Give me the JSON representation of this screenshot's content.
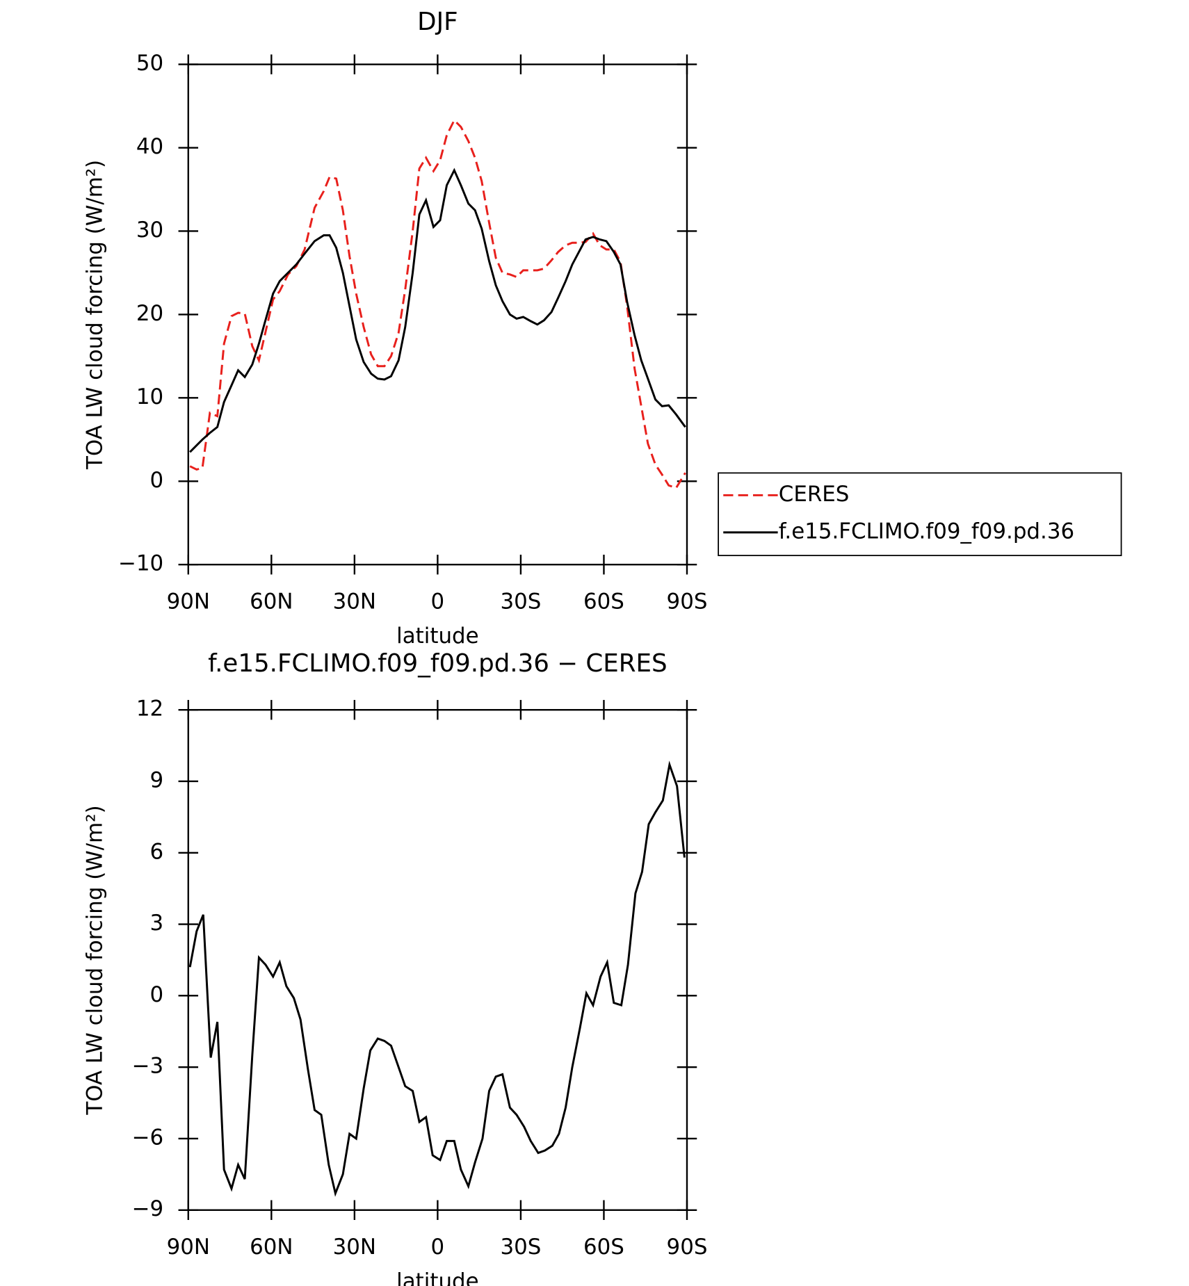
{
  "chart_data": [
    {
      "type": "line",
      "title": "DJF",
      "xlabel": "latitude",
      "ylabel": "TOA LW cloud forcing (W/m²)",
      "x": [
        89.4,
        87,
        84.9,
        82.2,
        79.5,
        77.1,
        74.4,
        72,
        69.6,
        66.9,
        64.5,
        62.4,
        59.4,
        57,
        54,
        51,
        48,
        44.4,
        41.1,
        39,
        36.6,
        34.2,
        31.8,
        29.4,
        26.7,
        24,
        21.6,
        19.2,
        16.8,
        14.1,
        11.7,
        9,
        6.6,
        4.2,
        1.5,
        -0.9,
        -3.3,
        -6,
        -8.4,
        -11.1,
        -13.5,
        -15.9,
        -18.6,
        -21,
        -23.4,
        -26.1,
        -28.5,
        -30.9,
        -33.6,
        -36,
        -38.4,
        -41.1,
        -43.5,
        -46.2,
        -48.6,
        -51,
        -53.4,
        -56.1,
        -58.5,
        -60.9,
        -63.6,
        -66,
        -68.4,
        -71.1,
        -73.5,
        -75.9,
        -78.6,
        -81,
        -83.4,
        -86.1,
        -89.4
      ],
      "series": [
        {
          "name": "CERES",
          "color": "#e8201c",
          "dash": true,
          "values": [
            1.8,
            1.4,
            1.6,
            8.2,
            7.8,
            16.5,
            19.8,
            20.2,
            20.1,
            16.2,
            14.5,
            17.5,
            21.8,
            22.8,
            24.8,
            25.8,
            27.8,
            32.8,
            34.8,
            36.5,
            36.3,
            32.5,
            27,
            22.5,
            18.5,
            15.2,
            13.8,
            13.8,
            15,
            17.8,
            23,
            30,
            37.5,
            38.8,
            37.2,
            38.5,
            41.5,
            43.3,
            42.5,
            40.8,
            38.8,
            36,
            31,
            26.8,
            25,
            24.8,
            24.5,
            25.3,
            25.3,
            25.3,
            25.5,
            26.5,
            27.5,
            28.3,
            28.6,
            28.6,
            28.7,
            29.7,
            28.3,
            27.8,
            27.8,
            26.3,
            21,
            13.5,
            9,
            4.5,
            2,
            0.8,
            -0.5,
            -0.8,
            1
          ]
        },
        {
          "name": "f.e15.FCLIMO.f09_f09.pd.36",
          "color": "#000000",
          "dash": false,
          "values": [
            3.5,
            4.3,
            5,
            5.8,
            6.5,
            9.5,
            11.5,
            13.3,
            12.5,
            14,
            16.5,
            19,
            22.5,
            24,
            25,
            26,
            27.3,
            28.8,
            29.5,
            29.5,
            28,
            25,
            21,
            17,
            14.3,
            12.9,
            12.3,
            12.2,
            12.6,
            14.5,
            18.5,
            25,
            32,
            33.7,
            30.5,
            31.3,
            35.5,
            37.3,
            35.5,
            33.3,
            32.5,
            30.3,
            26.4,
            23.5,
            21.6,
            20,
            19.5,
            19.7,
            19.2,
            18.8,
            19.3,
            20.3,
            22,
            24,
            26,
            27.5,
            29,
            29.3,
            29,
            28.8,
            27.5,
            26,
            21.5,
            17.5,
            14.5,
            12.3,
            9.8,
            9,
            9.1,
            8,
            6.5
          ]
        }
      ],
      "xlim": [
        90,
        -90
      ],
      "xticks": [
        {
          "value": 90,
          "label": "90N"
        },
        {
          "value": 60,
          "label": "60N"
        },
        {
          "value": 30,
          "label": "30N"
        },
        0,
        {
          "value": -30,
          "label": "30S"
        },
        {
          "value": -60,
          "label": "60S"
        },
        {
          "value": -90,
          "label": "90S"
        }
      ],
      "ylim": [
        -10,
        50
      ],
      "yticks": [
        {
          "value": -10,
          "label": "−10"
        },
        0,
        10,
        20,
        30,
        40,
        50
      ],
      "legend": "right"
    },
    {
      "type": "line",
      "title": "f.e15.FCLIMO.f09_f09.pd.36 − CERES",
      "xlabel": "latitude",
      "ylabel": "TOA LW cloud forcing (W/m²)",
      "x": [
        89.4,
        87,
        84.6,
        81.9,
        79.5,
        77.1,
        74.4,
        72,
        69.6,
        66.9,
        64.5,
        62.1,
        59.4,
        57,
        54.6,
        51.9,
        49.5,
        46.8,
        44.4,
        42,
        39.3,
        36.9,
        34.2,
        31.8,
        29.4,
        26.7,
        24.3,
        21.6,
        19.2,
        16.8,
        14.1,
        11.7,
        9,
        6.6,
        4.2,
        1.8,
        -0.9,
        -3.3,
        -6,
        -8.4,
        -11.1,
        -13.5,
        -16.2,
        -18.6,
        -21,
        -23.4,
        -26.1,
        -28.5,
        -31.2,
        -33.6,
        -36.3,
        -38.7,
        -41.4,
        -43.8,
        -46.2,
        -48.6,
        -51.3,
        -53.7,
        -56.1,
        -58.8,
        -61.2,
        -63.6,
        -66.3,
        -68.7,
        -71.4,
        -73.8,
        -76.2,
        -78.6,
        -81.3,
        -83.7,
        -86.4,
        -89.1
      ],
      "series": [
        {
          "color": "#000000",
          "dash": false,
          "values": [
            1.2,
            2.7,
            3.4,
            -2.6,
            -1.1,
            -7.3,
            -8.1,
            -7.1,
            -7.7,
            -2.5,
            1.6,
            1.3,
            0.8,
            1.4,
            0.4,
            -0.1,
            -1,
            -3.1,
            -4.8,
            -5,
            -7.1,
            -8.3,
            -7.5,
            -5.8,
            -6,
            -3.9,
            -2.3,
            -1.8,
            -1.9,
            -2.1,
            -3,
            -3.8,
            -4,
            -5.3,
            -5.1,
            -6.7,
            -6.9,
            -6.1,
            -6.1,
            -7.3,
            -8,
            -7,
            -6,
            -4,
            -3.4,
            -3.3,
            -4.7,
            -5,
            -5.5,
            -6.1,
            -6.6,
            -6.5,
            -6.3,
            -5.8,
            -4.7,
            -3,
            -1.4,
            0.1,
            -0.4,
            0.8,
            1.4,
            -0.3,
            -0.4,
            1.3,
            4.3,
            5.2,
            7.2,
            7.7,
            8.2,
            9.7,
            8.8,
            5.8
          ]
        }
      ],
      "xlim": [
        90,
        -90
      ],
      "xticks": [
        {
          "value": 90,
          "label": "90N"
        },
        {
          "value": 60,
          "label": "60N"
        },
        {
          "value": 30,
          "label": "30N"
        },
        0,
        {
          "value": -30,
          "label": "30S"
        },
        {
          "value": -60,
          "label": "60S"
        },
        {
          "value": -90,
          "label": "90S"
        }
      ],
      "ylim": [
        -9,
        12
      ],
      "yticks": [
        {
          "value": -9,
          "label": "−9"
        },
        {
          "value": -6,
          "label": "−6"
        },
        {
          "value": -3,
          "label": "−3"
        },
        0,
        3,
        6,
        9,
        12
      ]
    }
  ]
}
